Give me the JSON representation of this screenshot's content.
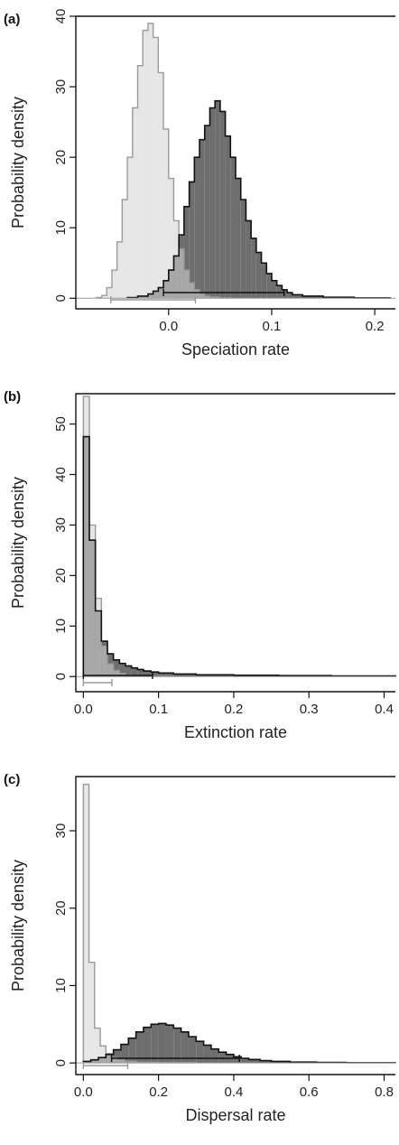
{
  "chart_data": [
    {
      "type": "histogram",
      "panel_label": "(a)",
      "xlabel": "Speciation rate",
      "ylabel": "Probability density",
      "xlim": [
        -0.09,
        0.22
      ],
      "ylim": [
        -1.5,
        40
      ],
      "xticks": [
        0.0,
        0.1,
        0.2
      ],
      "xtick_labels": [
        "0.0",
        "0.1",
        "0.2"
      ],
      "yticks": [
        0,
        10,
        20,
        30,
        40
      ],
      "ytick_labels": [
        "0",
        "10",
        "20",
        "30",
        "40"
      ],
      "series": [
        {
          "color": "#e6e6e6",
          "stroke": "#9a9a9a",
          "ci": [
            -0.056,
            0.026
          ],
          "bins": [
            [
              -0.07,
              -0.065,
              0.1
            ],
            [
              -0.065,
              -0.06,
              0.4
            ],
            [
              -0.06,
              -0.055,
              1.5
            ],
            [
              -0.055,
              -0.05,
              4
            ],
            [
              -0.05,
              -0.045,
              8
            ],
            [
              -0.045,
              -0.04,
              14
            ],
            [
              -0.04,
              -0.035,
              20
            ],
            [
              -0.035,
              -0.03,
              27
            ],
            [
              -0.03,
              -0.025,
              33
            ],
            [
              -0.025,
              -0.02,
              38
            ],
            [
              -0.02,
              -0.015,
              39
            ],
            [
              -0.015,
              -0.01,
              37
            ],
            [
              -0.01,
              -0.005,
              32
            ],
            [
              -0.005,
              0.0,
              24
            ],
            [
              0.0,
              0.005,
              17
            ],
            [
              0.005,
              0.01,
              11
            ],
            [
              0.01,
              0.015,
              7
            ],
            [
              0.015,
              0.02,
              4
            ],
            [
              0.02,
              0.025,
              2.2
            ],
            [
              0.025,
              0.03,
              1.2
            ],
            [
              0.03,
              0.035,
              0.6
            ],
            [
              0.035,
              0.04,
              0.3
            ],
            [
              0.04,
              0.05,
              0.15
            ],
            [
              0.05,
              0.06,
              0.05
            ]
          ]
        },
        {
          "color": "#6e6e6e",
          "stroke": "#111111",
          "ci": [
            -0.005,
            0.112
          ],
          "bins": [
            [
              -0.04,
              -0.03,
              0.1
            ],
            [
              -0.03,
              -0.02,
              0.3
            ],
            [
              -0.02,
              -0.015,
              0.6
            ],
            [
              -0.015,
              -0.01,
              1
            ],
            [
              -0.01,
              -0.005,
              1.5
            ],
            [
              -0.005,
              0.0,
              2.5
            ],
            [
              0.0,
              0.005,
              4
            ],
            [
              0.005,
              0.01,
              6
            ],
            [
              0.01,
              0.015,
              9
            ],
            [
              0.015,
              0.02,
              13
            ],
            [
              0.02,
              0.025,
              16.5
            ],
            [
              0.025,
              0.03,
              20
            ],
            [
              0.03,
              0.035,
              22.5
            ],
            [
              0.035,
              0.04,
              24.5
            ],
            [
              0.04,
              0.045,
              27
            ],
            [
              0.045,
              0.05,
              28
            ],
            [
              0.05,
              0.055,
              26.5
            ],
            [
              0.055,
              0.06,
              23
            ],
            [
              0.06,
              0.065,
              20
            ],
            [
              0.065,
              0.07,
              17
            ],
            [
              0.07,
              0.075,
              14
            ],
            [
              0.075,
              0.08,
              11
            ],
            [
              0.08,
              0.085,
              8.5
            ],
            [
              0.085,
              0.09,
              6.5
            ],
            [
              0.09,
              0.095,
              5
            ],
            [
              0.095,
              0.1,
              3.5
            ],
            [
              0.1,
              0.105,
              2.5
            ],
            [
              0.105,
              0.11,
              1.8
            ],
            [
              0.11,
              0.115,
              1.2
            ],
            [
              0.115,
              0.12,
              0.8
            ],
            [
              0.12,
              0.13,
              0.5
            ],
            [
              0.13,
              0.15,
              0.3
            ],
            [
              0.15,
              0.18,
              0.15
            ],
            [
              0.18,
              0.215,
              0.05
            ]
          ]
        }
      ]
    },
    {
      "type": "histogram",
      "panel_label": "(b)",
      "xlabel": "Extinction rate",
      "ylabel": "Probability density",
      "xlim": [
        -0.01,
        0.415
      ],
      "ylim": [
        -3,
        56
      ],
      "xticks": [
        0.0,
        0.1,
        0.2,
        0.3,
        0.4
      ],
      "xtick_labels": [
        "0.0",
        "0.1",
        "0.2",
        "0.3",
        "0.4"
      ],
      "yticks": [
        0,
        10,
        20,
        30,
        40,
        50
      ],
      "ytick_labels": [
        "0",
        "10",
        "20",
        "30",
        "40",
        "50"
      ],
      "series": [
        {
          "color": "#e6e6e6",
          "stroke": "#9a9a9a",
          "ci": [
            0.0,
            0.038
          ],
          "bins": [
            [
              0.0,
              0.008,
              55.5
            ],
            [
              0.008,
              0.016,
              30
            ],
            [
              0.016,
              0.024,
              15.5
            ],
            [
              0.024,
              0.032,
              6
            ],
            [
              0.032,
              0.04,
              2.5
            ],
            [
              0.04,
              0.048,
              1.2
            ],
            [
              0.048,
              0.056,
              0.6
            ],
            [
              0.056,
              0.064,
              0.3
            ],
            [
              0.064,
              0.08,
              0.15
            ],
            [
              0.08,
              0.12,
              0.05
            ]
          ]
        },
        {
          "color": "#6e6e6e",
          "stroke": "#111111",
          "ci": [
            0.0,
            0.092
          ],
          "bins": [
            [
              0.0,
              0.008,
              47.5
            ],
            [
              0.008,
              0.016,
              27
            ],
            [
              0.016,
              0.024,
              13
            ],
            [
              0.024,
              0.032,
              7
            ],
            [
              0.032,
              0.04,
              4.5
            ],
            [
              0.04,
              0.048,
              3.3
            ],
            [
              0.048,
              0.056,
              2.6
            ],
            [
              0.056,
              0.064,
              2.1
            ],
            [
              0.064,
              0.072,
              1.7
            ],
            [
              0.072,
              0.08,
              1.4
            ],
            [
              0.08,
              0.09,
              1.1
            ],
            [
              0.09,
              0.1,
              0.9
            ],
            [
              0.1,
              0.12,
              0.7
            ],
            [
              0.12,
              0.15,
              0.5
            ],
            [
              0.15,
              0.2,
              0.35
            ],
            [
              0.2,
              0.26,
              0.25
            ],
            [
              0.26,
              0.33,
              0.18
            ],
            [
              0.33,
              0.415,
              0.12
            ]
          ]
        }
      ]
    },
    {
      "type": "histogram",
      "panel_label": "(c)",
      "xlabel": "Dispersal rate",
      "ylabel": "Probability density",
      "xlim": [
        -0.02,
        0.83
      ],
      "ylim": [
        -1.5,
        37
      ],
      "xticks": [
        0.0,
        0.2,
        0.4,
        0.6,
        0.8
      ],
      "xtick_labels": [
        "0.0",
        "0.2",
        "0.4",
        "0.6",
        "0.8"
      ],
      "yticks": [
        0,
        10,
        20,
        30
      ],
      "ytick_labels": [
        "0",
        "10",
        "20",
        "30"
      ],
      "series": [
        {
          "color": "#e6e6e6",
          "stroke": "#9a9a9a",
          "ci": [
            0.0,
            0.118
          ],
          "bins": [
            [
              0.0,
              0.015,
              36
            ],
            [
              0.015,
              0.03,
              13
            ],
            [
              0.03,
              0.045,
              4.5
            ],
            [
              0.045,
              0.06,
              2.2
            ],
            [
              0.06,
              0.075,
              1.2
            ],
            [
              0.075,
              0.09,
              0.7
            ],
            [
              0.09,
              0.11,
              0.4
            ],
            [
              0.11,
              0.14,
              0.2
            ],
            [
              0.14,
              0.2,
              0.08
            ],
            [
              0.2,
              0.3,
              0.03
            ]
          ]
        },
        {
          "color": "#6e6e6e",
          "stroke": "#111111",
          "ci": [
            0.075,
            0.415
          ],
          "bins": [
            [
              0.0,
              0.02,
              0.2
            ],
            [
              0.02,
              0.04,
              0.4
            ],
            [
              0.04,
              0.06,
              0.7
            ],
            [
              0.06,
              0.08,
              1.1
            ],
            [
              0.08,
              0.1,
              1.7
            ],
            [
              0.1,
              0.12,
              2.4
            ],
            [
              0.12,
              0.14,
              3.2
            ],
            [
              0.14,
              0.16,
              4.0
            ],
            [
              0.16,
              0.18,
              4.6
            ],
            [
              0.18,
              0.2,
              5.0
            ],
            [
              0.2,
              0.22,
              5.1
            ],
            [
              0.22,
              0.24,
              4.9
            ],
            [
              0.24,
              0.26,
              4.5
            ],
            [
              0.26,
              0.28,
              4.0
            ],
            [
              0.28,
              0.3,
              3.4
            ],
            [
              0.3,
              0.32,
              2.8
            ],
            [
              0.32,
              0.34,
              2.3
            ],
            [
              0.34,
              0.36,
              1.8
            ],
            [
              0.36,
              0.38,
              1.4
            ],
            [
              0.38,
              0.4,
              1.1
            ],
            [
              0.4,
              0.42,
              0.8
            ],
            [
              0.42,
              0.44,
              0.6
            ],
            [
              0.44,
              0.47,
              0.45
            ],
            [
              0.47,
              0.5,
              0.3
            ],
            [
              0.5,
              0.55,
              0.2
            ],
            [
              0.55,
              0.62,
              0.12
            ],
            [
              0.62,
              0.7,
              0.07
            ],
            [
              0.7,
              0.83,
              0.03
            ]
          ]
        }
      ]
    }
  ]
}
